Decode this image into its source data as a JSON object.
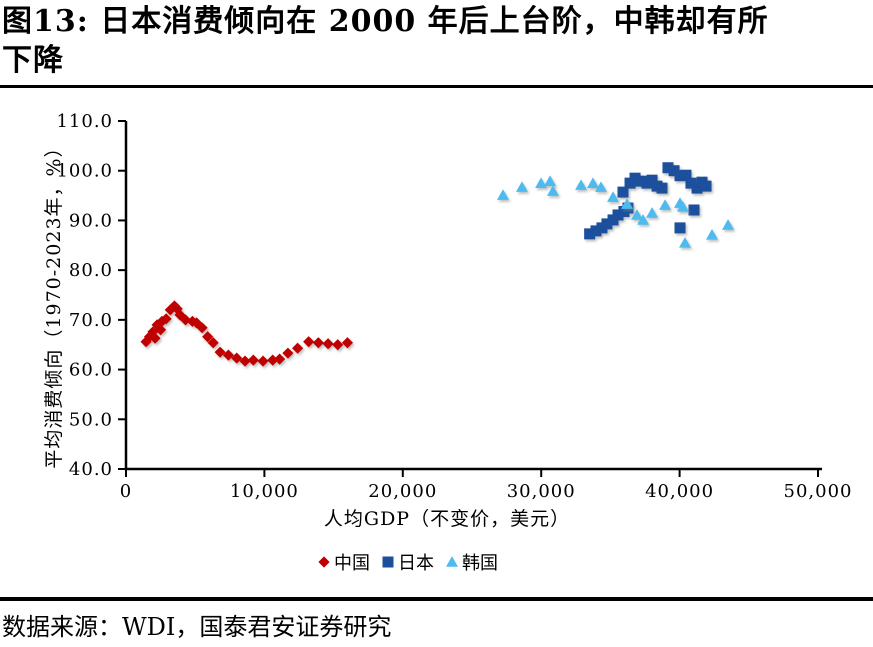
{
  "title": {
    "line1": "图13: 日本消费倾向在 2000 年后上台阶，中韩却有所",
    "line2": "下降"
  },
  "source": "数据来源：WDI，国泰君安证券研究",
  "colors": {
    "china": "#C00000",
    "japan": "#1B4F9C",
    "korea": "#4DBBEE",
    "axis": "#000000",
    "rule": "#000000",
    "background": "#FFFFFF"
  },
  "chart_data": {
    "type": "scatter",
    "title": "图13: 日本消费倾向在 2000 年后上台阶，中韩却有所下降",
    "xlabel": "人均GDP（不变价，美元）",
    "ylabel": "平均消费倾向（1970-2023年，%）",
    "xlim": [
      0,
      50000
    ],
    "ylim": [
      40,
      110
    ],
    "grid": false,
    "legend_position": "bottom",
    "xticks": {
      "values": [
        0,
        10000,
        20000,
        30000,
        40000,
        50000
      ],
      "labels": [
        "0",
        "10,000",
        "20,000",
        "30,000",
        "40,000",
        "50,000"
      ]
    },
    "yticks": {
      "values": [
        40,
        50,
        60,
        70,
        80,
        90,
        100,
        110
      ],
      "labels": [
        "40.0",
        "50.0",
        "60.0",
        "70.0",
        "80.0",
        "90.0",
        "100.0",
        "110.0"
      ]
    },
    "series": [
      {
        "id": "china",
        "name": "中国",
        "marker": "diamond",
        "color": "#C00000",
        "points": [
          [
            1450,
            65.6
          ],
          [
            1700,
            66.6
          ],
          [
            1950,
            67.6
          ],
          [
            2100,
            66.3
          ],
          [
            2250,
            69.0
          ],
          [
            2500,
            68.0
          ],
          [
            2600,
            69.7
          ],
          [
            2900,
            70.2
          ],
          [
            3200,
            72.0
          ],
          [
            3500,
            72.8
          ],
          [
            3700,
            72.2
          ],
          [
            3900,
            71.0
          ],
          [
            4300,
            70.0
          ],
          [
            4800,
            69.7
          ],
          [
            5100,
            69.4
          ],
          [
            5500,
            68.4
          ],
          [
            5900,
            66.6
          ],
          [
            6300,
            65.4
          ],
          [
            6800,
            63.5
          ],
          [
            7400,
            62.9
          ],
          [
            8000,
            62.3
          ],
          [
            8600,
            61.7
          ],
          [
            9200,
            61.9
          ],
          [
            9900,
            61.7
          ],
          [
            10600,
            61.9
          ],
          [
            11100,
            62.1
          ],
          [
            11700,
            63.3
          ],
          [
            12400,
            64.3
          ],
          [
            13200,
            65.6
          ],
          [
            13900,
            65.4
          ],
          [
            14600,
            65.2
          ],
          [
            15300,
            65.0
          ],
          [
            16000,
            65.4
          ]
        ]
      },
      {
        "id": "japan",
        "name": "日本",
        "marker": "square",
        "color": "#1B4F9C",
        "points": [
          [
            33500,
            87.3
          ],
          [
            33960,
            87.9
          ],
          [
            34390,
            88.5
          ],
          [
            34750,
            89.3
          ],
          [
            35190,
            90.1
          ],
          [
            35550,
            91.1
          ],
          [
            35980,
            91.8
          ],
          [
            36270,
            92.5
          ],
          [
            35910,
            95.7
          ],
          [
            36420,
            97.5
          ],
          [
            36780,
            98.5
          ],
          [
            37210,
            97.9
          ],
          [
            37640,
            97.5
          ],
          [
            38010,
            98.1
          ],
          [
            38370,
            96.9
          ],
          [
            38730,
            96.5
          ],
          [
            39160,
            100.6
          ],
          [
            39600,
            100.0
          ],
          [
            40030,
            99.0
          ],
          [
            40460,
            99.1
          ],
          [
            40820,
            97.5
          ],
          [
            41260,
            96.5
          ],
          [
            41620,
            97.7
          ],
          [
            41910,
            96.9
          ],
          [
            41040,
            92.1
          ],
          [
            40030,
            88.5
          ]
        ]
      },
      {
        "id": "korea",
        "name": "韩国",
        "marker": "triangle",
        "color": "#4DBBEE",
        "points": [
          [
            27240,
            95.1
          ],
          [
            28610,
            96.7
          ],
          [
            29990,
            97.5
          ],
          [
            30640,
            97.9
          ],
          [
            30850,
            95.9
          ],
          [
            32880,
            97.1
          ],
          [
            33740,
            97.5
          ],
          [
            34320,
            96.7
          ],
          [
            35190,
            94.7
          ],
          [
            36200,
            93.3
          ],
          [
            36920,
            91.1
          ],
          [
            37360,
            90.1
          ],
          [
            38010,
            91.5
          ],
          [
            38950,
            93.1
          ],
          [
            40030,
            93.5
          ],
          [
            40250,
            92.7
          ],
          [
            40390,
            85.5
          ],
          [
            42340,
            87.1
          ],
          [
            43500,
            89.1
          ]
        ]
      }
    ]
  }
}
